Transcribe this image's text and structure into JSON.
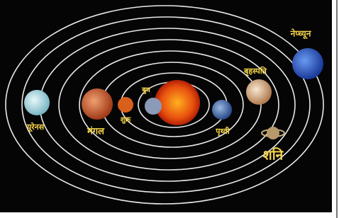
{
  "planets": {
    "neptune": "नेप्च्यून",
    "jupiter": "बृहस्पति",
    "mercury": "बुध",
    "venus": "शुक्र",
    "mars": "मंगल",
    "uranus": "यूरेनस",
    "earth": "पृथ्वी",
    "saturn": "शनि"
  }
}
